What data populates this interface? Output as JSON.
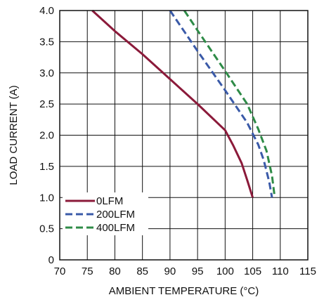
{
  "chart_data": {
    "type": "line",
    "title": "",
    "xlabel": "AMBIENT TEMPERATURE (°C)",
    "ylabel": "LOAD CURRENT (A)",
    "xlim": [
      70,
      115
    ],
    "ylim": [
      0,
      4.0
    ],
    "x_ticks": [
      70,
      75,
      80,
      85,
      90,
      95,
      100,
      105,
      110,
      115
    ],
    "x_tick_labels": [
      "70",
      "75",
      "80",
      "85",
      "90",
      "95",
      "100",
      "105",
      "110",
      "115"
    ],
    "y_ticks": [
      0,
      0.5,
      1.0,
      1.5,
      2.0,
      2.5,
      3.0,
      3.5,
      4.0
    ],
    "y_tick_labels": [
      "0",
      "0.5",
      "1.0",
      "1.5",
      "2.0",
      "2.5",
      "3.0",
      "3.5",
      "4.0"
    ],
    "grid": true,
    "legend_position": "bottom-left",
    "series": [
      {
        "name": "0LFM",
        "color": "#8b1a3a",
        "dash": "solid",
        "x": [
          75.9,
          80,
          85,
          90,
          95,
          100,
          101.5,
          103,
          104,
          105
        ],
        "y": [
          4.0,
          3.67,
          3.3,
          2.9,
          2.5,
          2.08,
          1.83,
          1.55,
          1.28,
          1.0
        ]
      },
      {
        "name": "200LFM",
        "color": "#3a5aa8",
        "dash": "dashed",
        "x": [
          90,
          95,
          100,
          104,
          106,
          107,
          108,
          108.5
        ],
        "y": [
          4.0,
          3.35,
          2.72,
          2.2,
          1.85,
          1.6,
          1.25,
          1.0
        ]
      },
      {
        "name": "400LFM",
        "color": "#2e8b47",
        "dash": "dashed",
        "x": [
          92.6,
          95,
          100,
          104,
          106,
          107.5,
          108.5,
          109
        ],
        "y": [
          4.0,
          3.68,
          3.03,
          2.5,
          2.1,
          1.75,
          1.35,
          1.0
        ]
      }
    ]
  }
}
